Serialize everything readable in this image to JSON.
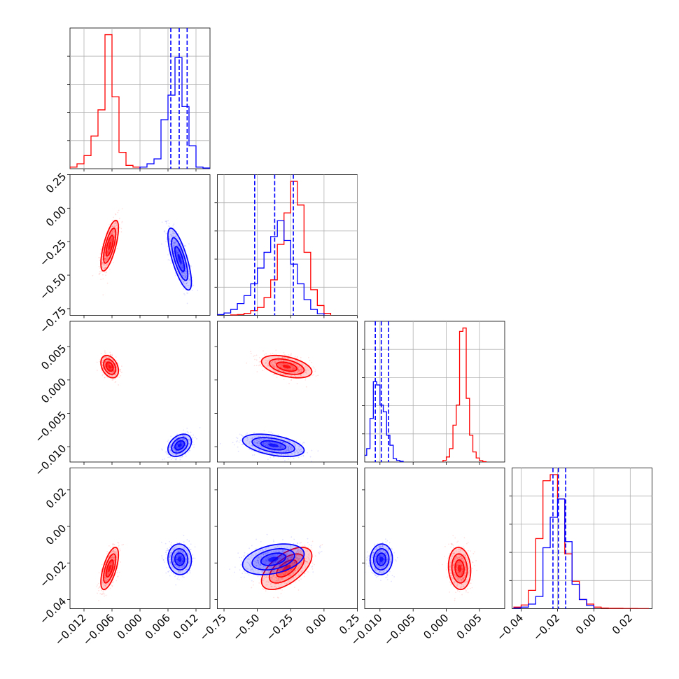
{
  "chart_data": {
    "type": "corner",
    "grid": true,
    "parameters": [
      {
        "range": [
          -0.015,
          0.015
        ],
        "ticks": [
          -0.012,
          -0.006,
          0.0,
          0.006,
          0.012
        ],
        "tick_labels": [
          "−0.012",
          "−0.006",
          "0.000",
          "0.006",
          "0.012"
        ]
      },
      {
        "range": [
          -0.8,
          0.25
        ],
        "ticks": [
          -0.75,
          -0.5,
          -0.25,
          0.0,
          0.25
        ],
        "tick_labels": [
          "−0.75",
          "−0.50",
          "−0.25",
          "0.00",
          "0.25"
        ]
      },
      {
        "range": [
          -0.0123,
          0.0088
        ],
        "ticks": [
          -0.01,
          -0.005,
          0.0,
          0.005
        ],
        "tick_labels": [
          "−0.010",
          "−0.005",
          "0.000",
          "0.005"
        ]
      },
      {
        "range": [
          -0.045,
          0.032
        ],
        "ticks": [
          -0.04,
          -0.02,
          0.0,
          0.02
        ],
        "tick_labels": [
          "−0.04",
          "−0.02",
          "0.00",
          "0.02"
        ]
      }
    ],
    "series": [
      {
        "color": "#ff0000",
        "mean": [
          -0.0065,
          -0.28,
          0.002,
          -0.023
        ],
        "sd": [
          0.0009,
          0.09,
          0.0008,
          0.0055
        ],
        "corr": {
          "0-1": 0.7,
          "0-2": -0.35,
          "0-3": 0.65,
          "1-2": -0.45,
          "1-3": 0.6,
          "2-3": -0.1
        },
        "histograms": [
          {
            "edges": [
              -0.015,
              -0.0135,
              -0.012,
              -0.0105,
              -0.009,
              -0.0075,
              -0.006,
              -0.0045,
              -0.003,
              -0.0015,
              0.0
            ],
            "counts": [
              0.5,
              1.5,
              4,
              10,
              18,
              41,
              22,
              5,
              1,
              0.5
            ]
          },
          {
            "edges": [
              -0.7,
              -0.65,
              -0.6,
              -0.55,
              -0.5,
              -0.45,
              -0.4,
              -0.35,
              -0.3,
              -0.25,
              -0.2,
              -0.15,
              -0.1,
              -0.05,
              0.0,
              0.05
            ],
            "counts": [
              0.1,
              0.2,
              0.5,
              1.2,
              2,
              4.5,
              9,
              18,
              26,
              34,
              28,
              16,
              6.5,
              2.5,
              0.5
            ]
          },
          {
            "edges": [
              -0.0005,
              0.0,
              0.0005,
              0.001,
              0.0015,
              0.002,
              0.0025,
              0.003,
              0.0035,
              0.004,
              0.0045,
              0.005,
              0.0055,
              0.006
            ],
            "counts": [
              0.5,
              1.5,
              4,
              11,
              17,
              39,
              40,
              19,
              8,
              3,
              1.2,
              0.4,
              0.1
            ]
          },
          {
            "edges": [
              -0.044,
              -0.04,
              -0.036,
              -0.032,
              -0.028,
              -0.024,
              -0.02,
              -0.016,
              -0.012,
              -0.008,
              -0.004,
              0.0,
              0.004,
              0.008,
              0.012,
              0.016,
              0.02,
              0.024,
              0.03
            ],
            "counts": [
              0.5,
              1.2,
              6,
              23,
              42,
              44,
              36,
              18,
              9,
              3,
              1.5,
              0.5,
              0.2,
              0.1,
              0.1,
              0.05,
              0.05,
              0.02
            ]
          }
        ]
      },
      {
        "color": "#0000ff",
        "mean": [
          0.0085,
          -0.38,
          -0.0098,
          -0.018
        ],
        "sd": [
          0.0012,
          0.11,
          0.0008,
          0.004
        ],
        "corr": {
          "0-1": -0.75,
          "0-2": 0.35,
          "0-3": -0.05,
          "1-2": -0.45,
          "1-3": 0.35,
          "2-3": 0.05
        },
        "histograms": [
          {
            "edges": [
              0.0,
              0.0015,
              0.003,
              0.0045,
              0.006,
              0.0075,
              0.009,
              0.0105,
              0.012,
              0.0135,
              0.015
            ],
            "counts": [
              0.5,
              1.5,
              3,
              15,
              22.5,
              34,
              19,
              7,
              0.5,
              0.2
            ]
          },
          {
            "edges": [
              -0.8,
              -0.75,
              -0.7,
              -0.65,
              -0.6,
              -0.55,
              -0.5,
              -0.45,
              -0.4,
              -0.35,
              -0.3,
              -0.25,
              -0.2,
              -0.15,
              -0.1,
              -0.05,
              0.0
            ],
            "counts": [
              0.2,
              0.6,
              1.5,
              3,
              5,
              8,
              12,
              16,
              20,
              24,
              19,
              13,
              8,
              4,
              1.5,
              0.4
            ]
          },
          {
            "edges": [
              -0.013,
              -0.0125,
              -0.012,
              -0.0115,
              -0.011,
              -0.0105,
              -0.01,
              -0.0095,
              -0.009,
              -0.0085,
              -0.008,
              -0.0075,
              -0.007,
              -0.0065
            ],
            "counts": [
              1,
              2,
              4,
              13,
              24,
              23,
              17,
              15,
              8,
              5,
              1,
              0.5,
              0.2
            ]
          },
          {
            "edges": [
              -0.044,
              -0.04,
              -0.036,
              -0.032,
              -0.028,
              -0.024,
              -0.02,
              -0.016,
              -0.012,
              -0.008,
              -0.004,
              0.0
            ],
            "counts": [
              0.2,
              0.5,
              1.5,
              4,
              20,
              30,
              36,
              22,
              8,
              3,
              1
            ]
          }
        ],
        "quantile_lines": [
          [
            0.0066,
            0.0084,
            0.0101
          ],
          [
            -0.52,
            -0.37,
            -0.23
          ],
          [
            -0.0107,
            -0.0098,
            -0.0087
          ],
          [
            -0.0225,
            -0.0195,
            -0.0155
          ]
        ]
      }
    ]
  }
}
